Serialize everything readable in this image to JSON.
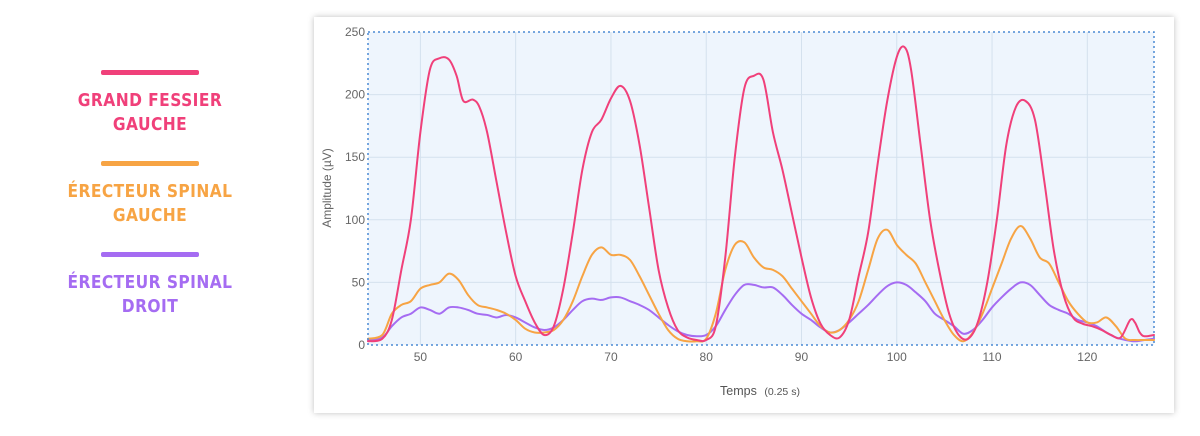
{
  "colors": {
    "pink": "#f0407a",
    "orange": "#f7a444",
    "purple": "#a56cf2",
    "plot_bg": "#eef5fd",
    "grid": "#d4e1ee",
    "axis_text": "#666666",
    "frame": "#4a8ad4"
  },
  "legend": {
    "items": [
      {
        "label": "GRAND FESSIER GAUCHE",
        "color": "#f0407a"
      },
      {
        "label": "ÉRECTEUR SPINAL GAUCHE",
        "color": "#f7a444"
      },
      {
        "label": "ÉRECTEUR SPINAL DROIT",
        "color": "#a56cf2"
      }
    ]
  },
  "chart_data": {
    "type": "line",
    "xlabel": "Temps",
    "xlabel_unit": "(0.25 s)",
    "ylabel": "Amplitude (µV)",
    "xlim": [
      44.5,
      127
    ],
    "ylim": [
      0,
      250
    ],
    "x_ticks": [
      50,
      60,
      70,
      80,
      90,
      100,
      110,
      120
    ],
    "y_ticks": [
      0,
      50,
      100,
      150,
      200,
      250
    ],
    "grid": true,
    "series": [
      {
        "color": "#f0407a",
        "points": [
          [
            44.5,
            3
          ],
          [
            46,
            5
          ],
          [
            47,
            20
          ],
          [
            48,
            60
          ],
          [
            49,
            100
          ],
          [
            50,
            170
          ],
          [
            51,
            220
          ],
          [
            52,
            229
          ],
          [
            53,
            228
          ],
          [
            53.8,
            215
          ],
          [
            54.5,
            195
          ],
          [
            55.5,
            196
          ],
          [
            56.2,
            190
          ],
          [
            57,
            170
          ],
          [
            58,
            130
          ],
          [
            59,
            90
          ],
          [
            60,
            55
          ],
          [
            61,
            35
          ],
          [
            62,
            18
          ],
          [
            63,
            8
          ],
          [
            64,
            15
          ],
          [
            65,
            45
          ],
          [
            66,
            90
          ],
          [
            67,
            140
          ],
          [
            68,
            170
          ],
          [
            69,
            180
          ],
          [
            70,
            197
          ],
          [
            71,
            207
          ],
          [
            72,
            195
          ],
          [
            73,
            160
          ],
          [
            74,
            110
          ],
          [
            75,
            60
          ],
          [
            76,
            30
          ],
          [
            77,
            12
          ],
          [
            78,
            6
          ],
          [
            79,
            4
          ],
          [
            80,
            4
          ],
          [
            81,
            15
          ],
          [
            82,
            70
          ],
          [
            83,
            150
          ],
          [
            84,
            205
          ],
          [
            85,
            215
          ],
          [
            86,
            212
          ],
          [
            87,
            170
          ],
          [
            88,
            140
          ],
          [
            89,
            105
          ],
          [
            90,
            70
          ],
          [
            91,
            38
          ],
          [
            92,
            17
          ],
          [
            93,
            8
          ],
          [
            94,
            6
          ],
          [
            95,
            20
          ],
          [
            96,
            55
          ],
          [
            97,
            90
          ],
          [
            98,
            145
          ],
          [
            99,
            195
          ],
          [
            100,
            230
          ],
          [
            100.8,
            238
          ],
          [
            101.5,
            220
          ],
          [
            102.5,
            160
          ],
          [
            103.5,
            100
          ],
          [
            104.5,
            58
          ],
          [
            105.5,
            25
          ],
          [
            106.5,
            8
          ],
          [
            107.5,
            5
          ],
          [
            108.5,
            18
          ],
          [
            109.5,
            50
          ],
          [
            110.5,
            100
          ],
          [
            111.5,
            160
          ],
          [
            112.5,
            190
          ],
          [
            113.5,
            195
          ],
          [
            114.5,
            180
          ],
          [
            115.5,
            130
          ],
          [
            116.5,
            75
          ],
          [
            117.5,
            40
          ],
          [
            118.5,
            22
          ],
          [
            119.5,
            17
          ],
          [
            120.5,
            15
          ],
          [
            121.5,
            12
          ],
          [
            122.5,
            8
          ],
          [
            123.5,
            6
          ],
          [
            124.5,
            20
          ],
          [
            125,
            18
          ],
          [
            125.5,
            10
          ],
          [
            126,
            7
          ],
          [
            127,
            8
          ]
        ]
      },
      {
        "color": "#f7a444",
        "points": [
          [
            44.5,
            5
          ],
          [
            46,
            8
          ],
          [
            47,
            25
          ],
          [
            48,
            32
          ],
          [
            49,
            35
          ],
          [
            50,
            45
          ],
          [
            51,
            48
          ],
          [
            52,
            50
          ],
          [
            53,
            57
          ],
          [
            54,
            52
          ],
          [
            55,
            40
          ],
          [
            56,
            32
          ],
          [
            57,
            30
          ],
          [
            58,
            28
          ],
          [
            59,
            25
          ],
          [
            60,
            20
          ],
          [
            61,
            13
          ],
          [
            62,
            10
          ],
          [
            63,
            10
          ],
          [
            64,
            12
          ],
          [
            65,
            20
          ],
          [
            66,
            35
          ],
          [
            67,
            55
          ],
          [
            68,
            72
          ],
          [
            69,
            78
          ],
          [
            70,
            72
          ],
          [
            71,
            72
          ],
          [
            72,
            68
          ],
          [
            73,
            55
          ],
          [
            74,
            40
          ],
          [
            75,
            25
          ],
          [
            76,
            12
          ],
          [
            77,
            5
          ],
          [
            78,
            3
          ],
          [
            79,
            3
          ],
          [
            80,
            5
          ],
          [
            81,
            25
          ],
          [
            82,
            60
          ],
          [
            83,
            80
          ],
          [
            84,
            82
          ],
          [
            85,
            70
          ],
          [
            86,
            62
          ],
          [
            87,
            60
          ],
          [
            88,
            55
          ],
          [
            89,
            45
          ],
          [
            90,
            35
          ],
          [
            91,
            25
          ],
          [
            92,
            15
          ],
          [
            93,
            10
          ],
          [
            94,
            12
          ],
          [
            95,
            20
          ],
          [
            96,
            35
          ],
          [
            97,
            60
          ],
          [
            98,
            85
          ],
          [
            99,
            92
          ],
          [
            100,
            80
          ],
          [
            101,
            72
          ],
          [
            102,
            65
          ],
          [
            103,
            50
          ],
          [
            104,
            35
          ],
          [
            105,
            20
          ],
          [
            106,
            8
          ],
          [
            107,
            3
          ],
          [
            108,
            10
          ],
          [
            109,
            25
          ],
          [
            110,
            45
          ],
          [
            111,
            65
          ],
          [
            112,
            85
          ],
          [
            113,
            95
          ],
          [
            114,
            85
          ],
          [
            115,
            70
          ],
          [
            116,
            65
          ],
          [
            117,
            50
          ],
          [
            118,
            35
          ],
          [
            119,
            25
          ],
          [
            120,
            18
          ],
          [
            121,
            18
          ],
          [
            122,
            22
          ],
          [
            123,
            15
          ],
          [
            124,
            5
          ],
          [
            125,
            4
          ],
          [
            126,
            4
          ],
          [
            127,
            4
          ]
        ]
      },
      {
        "color": "#a56cf2",
        "points": [
          [
            44.5,
            4
          ],
          [
            46,
            6
          ],
          [
            47,
            15
          ],
          [
            48,
            22
          ],
          [
            49,
            25
          ],
          [
            50,
            30
          ],
          [
            51,
            28
          ],
          [
            52,
            25
          ],
          [
            53,
            30
          ],
          [
            54,
            30
          ],
          [
            55,
            28
          ],
          [
            56,
            25
          ],
          [
            57,
            24
          ],
          [
            58,
            22
          ],
          [
            59,
            24
          ],
          [
            60,
            22
          ],
          [
            61,
            18
          ],
          [
            62,
            14
          ],
          [
            63,
            12
          ],
          [
            64,
            14
          ],
          [
            65,
            20
          ],
          [
            66,
            28
          ],
          [
            67,
            35
          ],
          [
            68,
            37
          ],
          [
            69,
            36
          ],
          [
            70,
            38
          ],
          [
            71,
            38
          ],
          [
            72,
            35
          ],
          [
            73,
            32
          ],
          [
            74,
            28
          ],
          [
            75,
            22
          ],
          [
            76,
            16
          ],
          [
            77,
            11
          ],
          [
            78,
            8
          ],
          [
            79,
            7
          ],
          [
            80,
            8
          ],
          [
            81,
            15
          ],
          [
            82,
            28
          ],
          [
            83,
            40
          ],
          [
            84,
            48
          ],
          [
            85,
            48
          ],
          [
            86,
            46
          ],
          [
            87,
            46
          ],
          [
            88,
            40
          ],
          [
            89,
            32
          ],
          [
            90,
            25
          ],
          [
            91,
            20
          ],
          [
            92,
            14
          ],
          [
            93,
            10
          ],
          [
            94,
            12
          ],
          [
            95,
            18
          ],
          [
            96,
            25
          ],
          [
            97,
            32
          ],
          [
            98,
            40
          ],
          [
            99,
            47
          ],
          [
            100,
            50
          ],
          [
            101,
            48
          ],
          [
            102,
            42
          ],
          [
            103,
            35
          ],
          [
            104,
            25
          ],
          [
            105,
            20
          ],
          [
            106,
            15
          ],
          [
            107,
            9
          ],
          [
            108,
            12
          ],
          [
            109,
            20
          ],
          [
            110,
            30
          ],
          [
            111,
            38
          ],
          [
            112,
            45
          ],
          [
            113,
            50
          ],
          [
            114,
            48
          ],
          [
            115,
            40
          ],
          [
            116,
            32
          ],
          [
            117,
            28
          ],
          [
            118,
            25
          ],
          [
            119,
            20
          ],
          [
            120,
            18
          ],
          [
            121,
            15
          ],
          [
            122,
            10
          ],
          [
            123,
            6
          ],
          [
            124,
            4
          ],
          [
            125,
            3
          ],
          [
            126,
            4
          ],
          [
            127,
            5
          ]
        ]
      }
    ]
  }
}
